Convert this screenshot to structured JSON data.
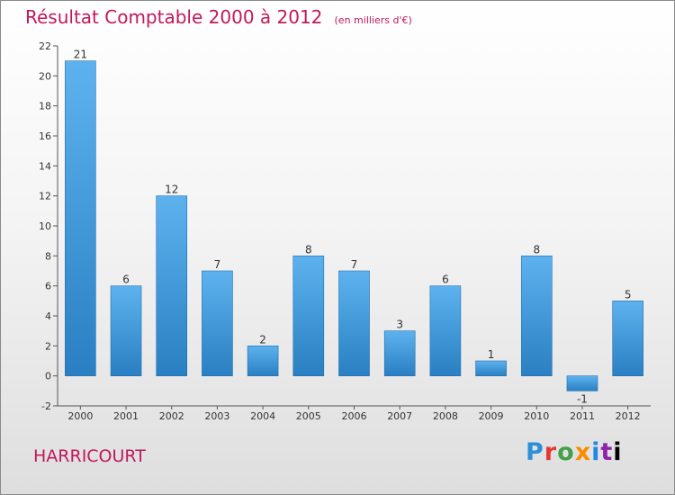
{
  "chart_data": {
    "type": "bar",
    "title": "Résultat Comptable 2000 à 2012",
    "subtitle": "(en milliers d'€)",
    "categories": [
      "2000",
      "2001",
      "2002",
      "2003",
      "2004",
      "2005",
      "2006",
      "2007",
      "2008",
      "2009",
      "2010",
      "2011",
      "2012"
    ],
    "values": [
      21,
      6,
      12,
      7,
      2,
      8,
      7,
      3,
      6,
      1,
      8,
      -1,
      5
    ],
    "ylim": [
      -2,
      22
    ],
    "yticks": [
      -2,
      0,
      2,
      4,
      6,
      8,
      10,
      12,
      14,
      16,
      18,
      20,
      22
    ],
    "xlabel": "",
    "ylabel": "",
    "grid": false,
    "bar_color": "#2f8fd8"
  },
  "commune": "HARRICOURT",
  "logo": {
    "text": "Proxiti"
  },
  "colors": {
    "title": "#c2185b",
    "bar_top": "#5db2ee",
    "bar_bottom": "#2a7fc2"
  }
}
